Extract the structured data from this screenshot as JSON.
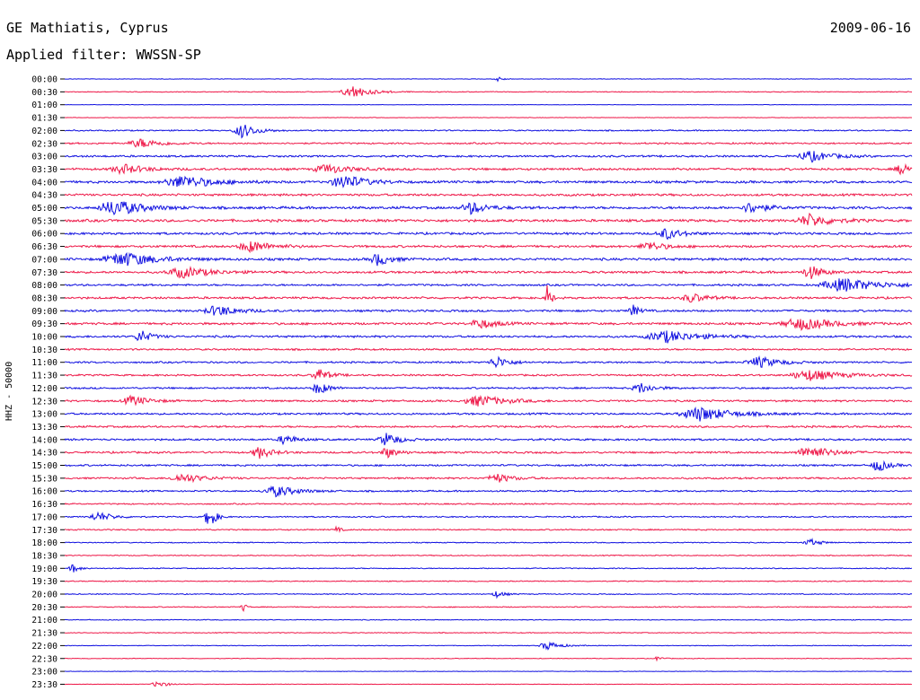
{
  "header": {
    "title": "GE Mathiatis, Cyprus",
    "date": "2009-06-16",
    "filter": "Applied filter: WWSSN-SP"
  },
  "chart_data": {
    "type": "line",
    "subtype": "helicorder",
    "ylabel": "HHZ - 50000",
    "row_labels": [
      "00:00",
      "00:30",
      "01:00",
      "01:30",
      "02:00",
      "02:30",
      "03:00",
      "03:30",
      "04:00",
      "04:30",
      "05:00",
      "05:30",
      "06:00",
      "06:30",
      "07:00",
      "07:30",
      "08:00",
      "08:30",
      "09:00",
      "09:30",
      "10:00",
      "10:30",
      "11:00",
      "11:30",
      "12:00",
      "12:30",
      "13:00",
      "13:30",
      "14:00",
      "14:30",
      "15:00",
      "15:30",
      "16:00",
      "16:30",
      "17:00",
      "17:30",
      "18:00",
      "18:30",
      "19:00",
      "19:30",
      "20:00",
      "20:30",
      "21:00",
      "21:30",
      "22:00",
      "22:30",
      "23:00",
      "23:30"
    ],
    "colors": [
      "#1010e0",
      "#ee1848"
    ],
    "noise": [
      0.3,
      0.5,
      0.3,
      0.3,
      0.8,
      1.0,
      1.2,
      1.4,
      1.5,
      1.4,
      1.6,
      1.6,
      1.4,
      1.4,
      1.5,
      1.4,
      1.2,
      1.3,
      1.3,
      1.4,
      1.3,
      1.1,
      1.1,
      1.1,
      1.1,
      1.2,
      1.2,
      1.2,
      1.2,
      1.2,
      1.1,
      1.1,
      1.0,
      0.8,
      0.8,
      0.8,
      0.6,
      0.6,
      0.6,
      0.6,
      0.6,
      0.6,
      0.5,
      0.5,
      0.4,
      0.4,
      0.3,
      0.3
    ],
    "events": [
      {
        "row": 0,
        "t": 0.51,
        "amp": 0.6,
        "w": 0.006
      },
      {
        "row": 1,
        "t": 0.34,
        "amp": 1.4,
        "w": 0.018
      },
      {
        "row": 4,
        "t": 0.21,
        "amp": 1.6,
        "w": 0.014
      },
      {
        "row": 5,
        "t": 0.09,
        "amp": 1.0,
        "w": 0.02
      },
      {
        "row": 6,
        "t": 0.88,
        "amp": 1.2,
        "w": 0.02
      },
      {
        "row": 7,
        "t": 0.07,
        "amp": 1.0,
        "w": 0.02
      },
      {
        "row": 7,
        "t": 0.31,
        "amp": 1.0,
        "w": 0.02
      },
      {
        "row": 7,
        "t": 0.99,
        "amp": 1.3,
        "w": 0.012
      },
      {
        "row": 8,
        "t": 0.14,
        "amp": 1.4,
        "w": 0.03
      },
      {
        "row": 8,
        "t": 0.33,
        "amp": 1.6,
        "w": 0.02
      },
      {
        "row": 10,
        "t": 0.06,
        "amp": 1.8,
        "w": 0.025
      },
      {
        "row": 10,
        "t": 0.48,
        "amp": 1.3,
        "w": 0.015
      },
      {
        "row": 10,
        "t": 0.81,
        "amp": 1.2,
        "w": 0.015
      },
      {
        "row": 11,
        "t": 0.88,
        "amp": 1.4,
        "w": 0.02
      },
      {
        "row": 12,
        "t": 0.71,
        "amp": 1.2,
        "w": 0.015
      },
      {
        "row": 13,
        "t": 0.22,
        "amp": 1.2,
        "w": 0.02
      },
      {
        "row": 13,
        "t": 0.69,
        "amp": 1.0,
        "w": 0.015
      },
      {
        "row": 14,
        "t": 0.07,
        "amp": 1.6,
        "w": 0.03
      },
      {
        "row": 14,
        "t": 0.37,
        "amp": 1.4,
        "w": 0.012
      },
      {
        "row": 15,
        "t": 0.14,
        "amp": 1.2,
        "w": 0.025
      },
      {
        "row": 15,
        "t": 0.88,
        "amp": 1.5,
        "w": 0.012
      },
      {
        "row": 16,
        "t": 0.92,
        "amp": 1.5,
        "w": 0.035
      },
      {
        "row": 17,
        "t": 0.57,
        "amp": 3.8,
        "w": 0.003
      },
      {
        "row": 17,
        "t": 0.74,
        "amp": 1.0,
        "w": 0.015
      },
      {
        "row": 18,
        "t": 0.18,
        "amp": 1.2,
        "w": 0.02
      },
      {
        "row": 18,
        "t": 0.67,
        "amp": 1.4,
        "w": 0.006
      },
      {
        "row": 19,
        "t": 0.49,
        "amp": 1.1,
        "w": 0.015
      },
      {
        "row": 19,
        "t": 0.87,
        "amp": 1.3,
        "w": 0.03
      },
      {
        "row": 20,
        "t": 0.09,
        "amp": 1.4,
        "w": 0.01
      },
      {
        "row": 20,
        "t": 0.71,
        "amp": 1.3,
        "w": 0.03
      },
      {
        "row": 22,
        "t": 0.51,
        "amp": 1.3,
        "w": 0.012
      },
      {
        "row": 22,
        "t": 0.82,
        "amp": 1.2,
        "w": 0.02
      },
      {
        "row": 23,
        "t": 0.3,
        "amp": 1.5,
        "w": 0.01
      },
      {
        "row": 23,
        "t": 0.88,
        "amp": 1.2,
        "w": 0.03
      },
      {
        "row": 24,
        "t": 0.3,
        "amp": 1.4,
        "w": 0.01
      },
      {
        "row": 24,
        "t": 0.68,
        "amp": 1.2,
        "w": 0.012
      },
      {
        "row": 25,
        "t": 0.08,
        "amp": 1.1,
        "w": 0.015
      },
      {
        "row": 25,
        "t": 0.49,
        "amp": 1.2,
        "w": 0.025
      },
      {
        "row": 26,
        "t": 0.75,
        "amp": 1.6,
        "w": 0.03
      },
      {
        "row": 28,
        "t": 0.26,
        "amp": 1.2,
        "w": 0.01
      },
      {
        "row": 28,
        "t": 0.38,
        "amp": 1.5,
        "w": 0.012
      },
      {
        "row": 29,
        "t": 0.23,
        "amp": 1.3,
        "w": 0.012
      },
      {
        "row": 29,
        "t": 0.38,
        "amp": 1.2,
        "w": 0.01
      },
      {
        "row": 29,
        "t": 0.88,
        "amp": 1.5,
        "w": 0.02
      },
      {
        "row": 30,
        "t": 0.96,
        "amp": 1.4,
        "w": 0.01
      },
      {
        "row": 31,
        "t": 0.14,
        "amp": 1.0,
        "w": 0.02
      },
      {
        "row": 31,
        "t": 0.51,
        "amp": 1.0,
        "w": 0.015
      },
      {
        "row": 32,
        "t": 0.25,
        "amp": 1.2,
        "w": 0.02
      },
      {
        "row": 34,
        "t": 0.04,
        "amp": 1.0,
        "w": 0.015
      },
      {
        "row": 34,
        "t": 0.17,
        "amp": 3.0,
        "w": 0.006
      },
      {
        "row": 35,
        "t": 0.32,
        "amp": 0.8,
        "w": 0.004
      },
      {
        "row": 36,
        "t": 0.88,
        "amp": 0.8,
        "w": 0.01
      },
      {
        "row": 38,
        "t": 0.01,
        "amp": 1.0,
        "w": 0.006
      },
      {
        "row": 40,
        "t": 0.51,
        "amp": 0.7,
        "w": 0.008
      },
      {
        "row": 41,
        "t": 0.21,
        "amp": 1.2,
        "w": 0.003
      },
      {
        "row": 44,
        "t": 0.57,
        "amp": 1.0,
        "w": 0.012
      },
      {
        "row": 45,
        "t": 0.7,
        "amp": 0.5,
        "w": 0.005
      },
      {
        "row": 47,
        "t": 0.11,
        "amp": 0.7,
        "w": 0.01
      }
    ]
  }
}
